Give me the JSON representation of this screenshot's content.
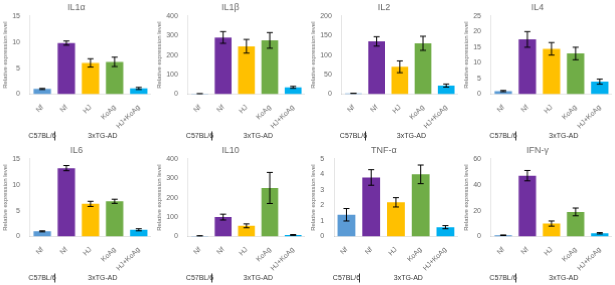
{
  "chart_data": [
    {
      "type": "bar",
      "title": "IL1α",
      "ylabel": "Relative expression level",
      "categories": [
        "Nf",
        "Nf",
        "HJ",
        "KoAg",
        "HJ+KoAg"
      ],
      "groups": [
        "C57BL/6",
        "3xTG-AD",
        "3xTG-AD",
        "3xTG-AD",
        "3xTG-AD"
      ],
      "values": [
        1.0,
        9.8,
        6.0,
        6.2,
        1.1
      ],
      "errors": [
        0.1,
        0.4,
        0.8,
        0.9,
        0.2
      ],
      "colors": [
        "#5b9bd5",
        "#7030a0",
        "#ffc000",
        "#70ad47",
        "#00b0f0"
      ],
      "ylim": [
        0,
        15
      ],
      "yticks": [
        0,
        5,
        10,
        15
      ],
      "grid": false
    },
    {
      "type": "bar",
      "title": "IL1β",
      "ylabel": "Relative expression level",
      "categories": [
        "Nf",
        "Nf",
        "HJ",
        "KoAg",
        "HJ+KoAg"
      ],
      "groups": [
        "C57BL/6",
        "3xTG-AD",
        "3xTG-AD",
        "3xTG-AD",
        "3xTG-AD"
      ],
      "values": [
        2,
        290,
        245,
        275,
        35
      ],
      "errors": [
        0.5,
        30,
        35,
        40,
        5
      ],
      "colors": [
        "#5b9bd5",
        "#7030a0",
        "#ffc000",
        "#70ad47",
        "#00b0f0"
      ],
      "ylim": [
        0,
        400
      ],
      "yticks": [
        0,
        100,
        200,
        300,
        400
      ],
      "grid": false
    },
    {
      "type": "bar",
      "title": "IL2",
      "ylabel": "Relative expression level",
      "categories": [
        "Nf",
        "Nf",
        "HJ",
        "KoAg",
        "HJ+KoAg"
      ],
      "groups": [
        "C57BL/6",
        "3xTG-AD",
        "3xTG-AD",
        "3xTG-AD",
        "3xTG-AD"
      ],
      "values": [
        2,
        135,
        70,
        130,
        22
      ],
      "errors": [
        0.5,
        12,
        15,
        18,
        4
      ],
      "colors": [
        "#5b9bd5",
        "#7030a0",
        "#ffc000",
        "#70ad47",
        "#00b0f0"
      ],
      "ylim": [
        0,
        200
      ],
      "yticks": [
        0,
        50,
        100,
        150,
        200
      ],
      "grid": false
    },
    {
      "type": "bar",
      "title": "IL4",
      "ylabel": "Relative expression level",
      "categories": [
        "Nf",
        "Nf",
        "HJ",
        "KoAg",
        "HJ+KoAg"
      ],
      "groups": [
        "C57BL/6",
        "3xTG-AD",
        "3xTG-AD",
        "3xTG-AD",
        "3xTG-AD"
      ],
      "values": [
        1.0,
        17.5,
        14.5,
        13.0,
        4.0
      ],
      "errors": [
        0.2,
        2.5,
        2.0,
        2.0,
        0.8
      ],
      "colors": [
        "#5b9bd5",
        "#7030a0",
        "#ffc000",
        "#70ad47",
        "#00b0f0"
      ],
      "ylim": [
        0,
        25
      ],
      "yticks": [
        0,
        5,
        10,
        15,
        20,
        25
      ],
      "grid": false
    },
    {
      "type": "bar",
      "title": "IL6",
      "ylabel": "Relative expression level",
      "categories": [
        "Nf",
        "Nf",
        "HJ",
        "KoAg",
        "HJ+KoAg"
      ],
      "groups": [
        "C57BL/6",
        "3xTG-AD",
        "3xTG-AD",
        "3xTG-AD",
        "3xTG-AD"
      ],
      "values": [
        1.0,
        13.2,
        6.3,
        6.8,
        1.3
      ],
      "errors": [
        0.1,
        0.5,
        0.5,
        0.4,
        0.2
      ],
      "colors": [
        "#5b9bd5",
        "#7030a0",
        "#ffc000",
        "#70ad47",
        "#00b0f0"
      ],
      "ylim": [
        0,
        15
      ],
      "yticks": [
        0,
        5,
        10,
        15
      ],
      "grid": false
    },
    {
      "type": "bar",
      "title": "IL10",
      "ylabel": "Relative expression level",
      "categories": [
        "Nf",
        "Nf",
        "HJ",
        "KoAg",
        "HJ+KoAg"
      ],
      "groups": [
        "C57BL/6",
        "3xTG-AD",
        "3xTG-AD",
        "3xTG-AD",
        "3xTG-AD"
      ],
      "values": [
        3,
        100,
        55,
        250,
        8
      ],
      "errors": [
        1,
        15,
        10,
        80,
        2
      ],
      "colors": [
        "#5b9bd5",
        "#7030a0",
        "#ffc000",
        "#70ad47",
        "#00b0f0"
      ],
      "ylim": [
        0,
        400
      ],
      "yticks": [
        0,
        100,
        200,
        300,
        400
      ],
      "grid": false
    },
    {
      "type": "bar",
      "title": "TNF-α",
      "ylabel": "Relative expression level",
      "categories": [
        "Nf",
        "Nf",
        "HJ",
        "KoAg",
        "HJ+KoAg"
      ],
      "groups": [
        "C57BL/6",
        "3xTG-AD",
        "3xTG-AD",
        "3xTG-AD",
        "3xTG-AD"
      ],
      "values": [
        1.4,
        3.8,
        2.2,
        4.0,
        0.6
      ],
      "errors": [
        0.4,
        0.5,
        0.3,
        0.6,
        0.1
      ],
      "colors": [
        "#5b9bd5",
        "#7030a0",
        "#ffc000",
        "#70ad47",
        "#00b0f0"
      ],
      "ylim": [
        0,
        5
      ],
      "yticks": [
        0,
        1,
        2,
        3,
        4,
        5
      ],
      "grid": false
    },
    {
      "type": "bar",
      "title": "IFN-γ",
      "ylabel": "Relative expression level",
      "categories": [
        "Nf",
        "Nf",
        "HJ",
        "KoAg",
        "HJ+KoAg"
      ],
      "groups": [
        "C57BL/6",
        "3xTG-AD",
        "3xTG-AD",
        "3xTG-AD",
        "3xTG-AD"
      ],
      "values": [
        1.0,
        47,
        10,
        19,
        2.5
      ],
      "errors": [
        0.2,
        4,
        2,
        3,
        0.5
      ],
      "colors": [
        "#5b9bd5",
        "#7030a0",
        "#ffc000",
        "#70ad47",
        "#00b0f0"
      ],
      "ylim": [
        0,
        60
      ],
      "yticks": [
        0,
        20,
        40,
        60
      ],
      "grid": false
    }
  ]
}
